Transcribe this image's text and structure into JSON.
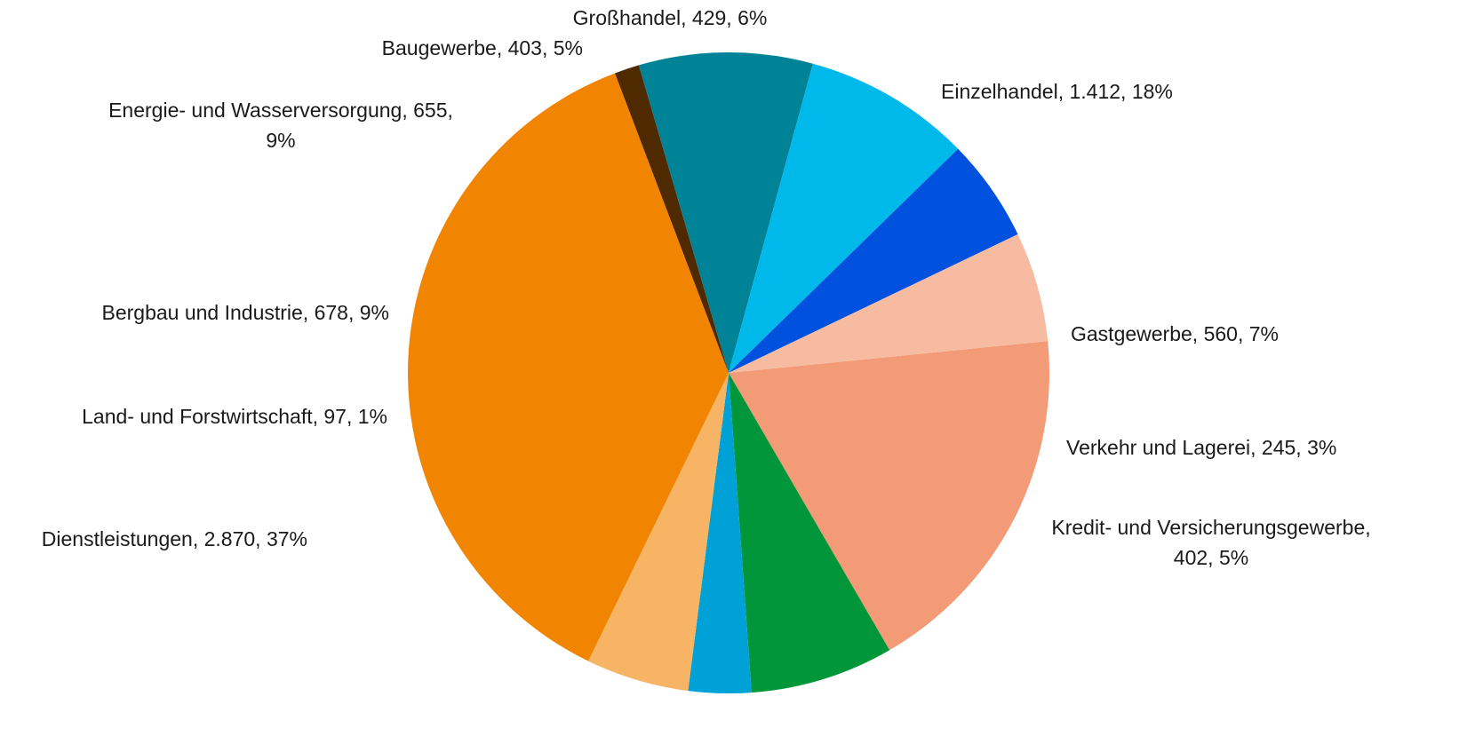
{
  "chart_data": {
    "type": "pie",
    "title": "",
    "slices": [
      {
        "name": "Einzelhandel",
        "value": 1412,
        "percent": 18,
        "color": "#F39B77",
        "label": [
          "Einzelhandel, 1.412, 18%"
        ]
      },
      {
        "name": "Gastgewerbe",
        "value": 560,
        "percent": 7,
        "color": "#009639",
        "label": [
          "Gastgewerbe, 560, 7%"
        ]
      },
      {
        "name": "Verkehr und Lagerei",
        "value": 245,
        "percent": 3,
        "color": "#00A1D7",
        "label": [
          "Verkehr und Lagerei, 245, 3%"
        ]
      },
      {
        "name": "Kredit- und Versicherungsgewerbe",
        "value": 402,
        "percent": 5,
        "color": "#F7B464",
        "label": [
          "Kredit- und Versicherungsgewerbe,",
          "402, 5%"
        ]
      },
      {
        "name": "Dienstleistungen",
        "value": 2870,
        "percent": 37,
        "color": "#F18400",
        "label": [
          "Dienstleistungen, 2.870, 37%"
        ]
      },
      {
        "name": "Land- und Forstwirtschaft",
        "value": 97,
        "percent": 1,
        "color": "#4F2A00",
        "label": [
          "Land- und Forstwirtschaft, 97, 1%"
        ]
      },
      {
        "name": "Bergbau und Industrie",
        "value": 678,
        "percent": 9,
        "color": "#008396",
        "label": [
          "Bergbau und Industrie, 678, 9%"
        ]
      },
      {
        "name": "Energie- und Wasserversorgung",
        "value": 655,
        "percent": 9,
        "color": "#00B9EB",
        "label": [
          "Energie- und Wasserversorgung, 655,",
          "9%"
        ]
      },
      {
        "name": "Baugewerbe",
        "value": 403,
        "percent": 5,
        "color": "#0051DE",
        "label": [
          "Baugewerbe, 403, 5%"
        ]
      },
      {
        "name": "Großhandel",
        "value": 429,
        "percent": 6,
        "color": "#F7BBA2",
        "label": [
          "Großhandel, 429, 6%"
        ]
      }
    ]
  }
}
